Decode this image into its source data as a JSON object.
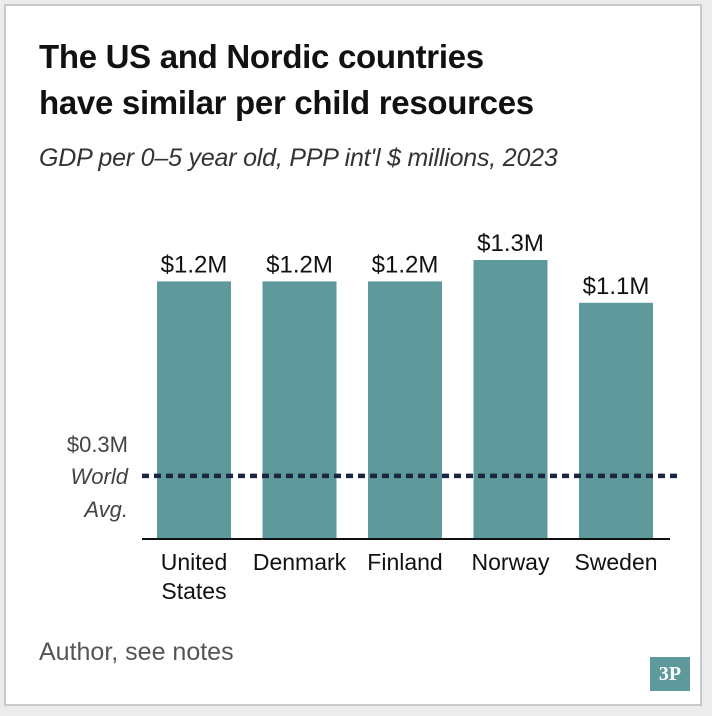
{
  "header": {
    "title_line1": "The US and Nordic countries",
    "title_line2": "have similar per child resources",
    "subtitle": "GDP per 0–5 year old, PPP int'l $ millions, 2023"
  },
  "footer": {
    "source": "Author, see notes",
    "logo_text": "3P"
  },
  "colors": {
    "bar": "#5e9a9b",
    "reference_line": "#1c2541"
  },
  "chart_data": {
    "type": "bar",
    "title": "The US and Nordic countries have similar per child resources",
    "subtitle": "GDP per 0–5 year old, PPP int'l $ millions, 2023",
    "categories": [
      [
        "United",
        "States"
      ],
      [
        "Denmark"
      ],
      [
        "Finland"
      ],
      [
        "Norway"
      ],
      [
        "Sweden"
      ]
    ],
    "values": [
      1.2,
      1.2,
      1.2,
      1.3,
      1.1
    ],
    "value_labels": [
      "$1.2M",
      "$1.2M",
      "$1.2M",
      "$1.3M",
      "$1.1M"
    ],
    "unit": "PPP int'l $ millions",
    "ylim": [
      0,
      1.3
    ],
    "grid": false,
    "legend": "none",
    "reference_line": {
      "value": 0.3,
      "value_label": "$0.3M",
      "label_lines": [
        "World",
        "Avg."
      ],
      "style": "dotted"
    }
  }
}
